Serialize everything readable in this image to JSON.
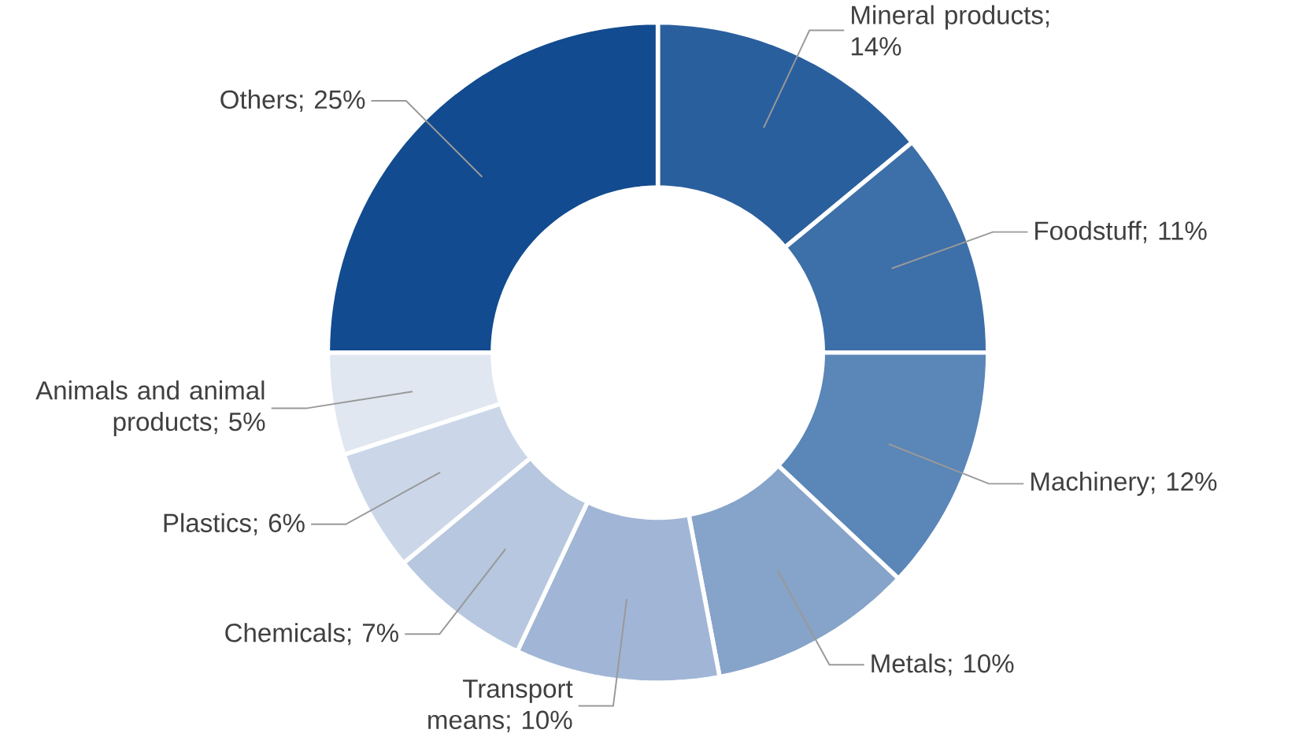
{
  "chart_data": {
    "type": "donut",
    "categories": [
      "Mineral products; 14%",
      "Foodstuff; 11%",
      "Machinery; 12%",
      "Metals; 10%",
      "Transport means; 10%",
      "Chemicals; 7%",
      "Plastics; 6%",
      "Animals and animal products; 5%",
      "Others; 25%"
    ],
    "values": [
      14,
      11,
      12,
      10,
      10,
      7,
      6,
      5,
      25
    ],
    "colors": [
      "#2a5f9e",
      "#3d6fa8",
      "#5a86b8",
      "#86a3c9",
      "#a1b6d6",
      "#b6c7df",
      "#cbd7e9",
      "#e0e7f1",
      "#124b8f"
    ]
  }
}
